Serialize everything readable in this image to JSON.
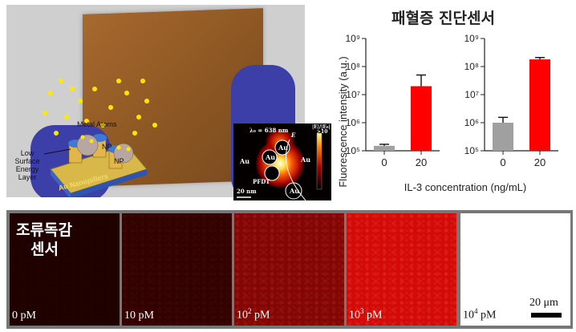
{
  "figure": {
    "photo_labels": {
      "metal_atoms": "Metal Atoms",
      "np1": "NP",
      "np2": "NP",
      "low_surface_energy_layer": "Low Surface Energy Layer",
      "au_nanopillars": "Au Nanopillers"
    },
    "inset": {
      "wavelength": "λ₀ = 638 nm",
      "e_label": "E",
      "colorbar_label": "|E|/|E₀|",
      "colorbar_max": ">10",
      "au_labels": [
        "Au",
        "Au",
        "Au",
        "Au",
        "Au"
      ],
      "pfdt": "PFDT",
      "scale_bar": "20 nm"
    },
    "chart_title": "패혈증 진단센서",
    "colors": {
      "control_bar": "#a0a0a0",
      "sample_bar": "#ff0000",
      "panel_red": "#cc1010"
    },
    "panels": [
      {
        "label_num": "0 pM",
        "brightness": 0.05
      },
      {
        "label_num": "10 pM",
        "brightness": 0.15
      },
      {
        "label_base": "10",
        "label_exp": "2",
        "label_unit": " pM",
        "brightness": 0.55
      },
      {
        "label_base": "10",
        "label_exp": "3",
        "label_unit": " pM",
        "brightness": 0.95
      },
      {
        "label_base": "10",
        "label_exp": "4",
        "label_unit": " pM",
        "brightness": 0.0
      }
    ],
    "panel_title_line1": "조류독감",
    "panel_title_line2": "센서",
    "scale_bar_label": "20 μm"
  },
  "chart_data": [
    {
      "type": "bar",
      "categories": [
        "0",
        "20"
      ],
      "values": [
        150000,
        20000000
      ],
      "error_plus": [
        20000,
        30000000
      ],
      "ylabel": "Fluorescence intensity (a.u.)",
      "xlabel": "IL-3 concentration (ng/mL)",
      "yscale": "log",
      "ylim": [
        100000,
        1000000000
      ],
      "yticks": [
        "10⁵",
        "10⁶",
        "10⁷",
        "10⁸",
        "10⁹"
      ]
    },
    {
      "type": "bar",
      "categories": [
        "0",
        "20"
      ],
      "values": [
        1000000,
        180000000
      ],
      "error_plus": [
        550000,
        30000000
      ],
      "yscale": "log",
      "ylim": [
        100000,
        1000000000
      ],
      "yticks": [
        "10⁵",
        "10⁶",
        "10⁷",
        "10⁸",
        "10⁹"
      ]
    }
  ]
}
